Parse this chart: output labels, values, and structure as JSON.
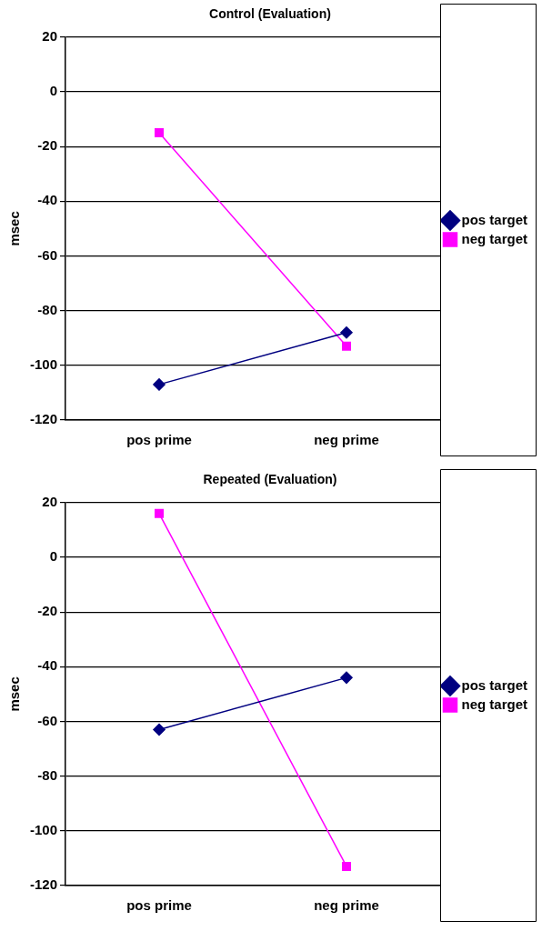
{
  "chart_data": [
    {
      "type": "line",
      "title": "Control (Evaluation)",
      "ylabel": "msec",
      "categories": [
        "pos prime",
        "neg prime"
      ],
      "series": [
        {
          "name": "pos target",
          "color": "#000080",
          "values": [
            -107,
            -88
          ],
          "marker": "diamond"
        },
        {
          "name": "neg target",
          "color": "#ff00ff",
          "values": [
            -15,
            -93
          ],
          "marker": "square"
        }
      ],
      "ylim": [
        -120,
        20
      ],
      "yticks": [
        -120,
        -100,
        -80,
        -60,
        -40,
        -20,
        0,
        20
      ],
      "grid": "y",
      "legend": "right",
      "line_style": "solid"
    },
    {
      "type": "line",
      "title": "Repeated (Evaluation)",
      "ylabel": "msec",
      "categories": [
        "pos prime",
        "neg prime"
      ],
      "series": [
        {
          "name": "pos target",
          "color": "#000080",
          "values": [
            -63,
            -44
          ],
          "marker": "diamond"
        },
        {
          "name": "neg target",
          "color": "#ff00ff",
          "values": [
            16,
            -113
          ],
          "marker": "square"
        }
      ],
      "ylim": [
        -120,
        20
      ],
      "yticks": [
        -120,
        -100,
        -80,
        -60,
        -40,
        -20,
        0,
        20
      ],
      "grid": "y",
      "legend": "right",
      "line_style": "solid"
    }
  ]
}
